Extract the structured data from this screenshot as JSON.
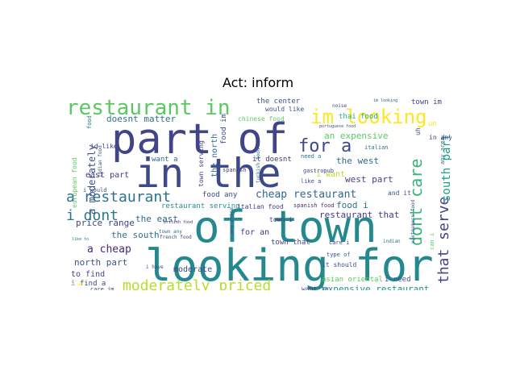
{
  "chart_data": {
    "type": "wordcloud",
    "title": "Act: inform",
    "background": "#ffffff",
    "colormap": "viridis",
    "words": [
      {
        "text": "looking for",
        "color": "#23898e"
      },
      {
        "text": "of town",
        "color": "#23898e"
      },
      {
        "text": "in the",
        "color": "#3e4989"
      },
      {
        "text": "part of",
        "color": "#414487"
      },
      {
        "text": "restaurant in",
        "color": "#5cc863"
      },
      {
        "text": "im looking",
        "color": "#fde725"
      },
      {
        "text": "for a",
        "color": "#3e4989"
      },
      {
        "text": "dont care",
        "color": "#35b779"
      },
      {
        "text": "moderately priced",
        "color": "#b5de2b"
      },
      {
        "text": "a restaurant",
        "color": "#2c728e"
      },
      {
        "text": "i dont",
        "color": "#2a788e"
      },
      {
        "text": "that serve",
        "color": "#414487"
      },
      {
        "text": "priced restaurant",
        "color": "#3b528b"
      },
      {
        "text": "south part",
        "color": "#1f9e89"
      },
      {
        "text": "cheap restaurant",
        "color": "#31688e"
      },
      {
        "text": "a moderately",
        "color": "#3b528b"
      },
      {
        "text": "restaurant that",
        "color": "#443983"
      },
      {
        "text": "an expensive",
        "color": "#5ec962"
      },
      {
        "text": "west part",
        "color": "#414487"
      },
      {
        "text": "the west",
        "color": "#31688e"
      },
      {
        "text": "the south",
        "color": "#2c728e"
      },
      {
        "text": "a cheap",
        "color": "#482878"
      },
      {
        "text": "expensive restaurant",
        "color": "#21918c"
      },
      {
        "text": "north part",
        "color": "#3b528b"
      },
      {
        "text": "food i",
        "color": "#2c728e"
      },
      {
        "text": "price range",
        "color": "#414487"
      },
      {
        "text": "the east",
        "color": "#31688e"
      },
      {
        "text": "doesnt matter",
        "color": "#2c728e"
      },
      {
        "text": "the center",
        "color": "#3b528b"
      },
      {
        "text": "thai food",
        "color": "#28ae80"
      },
      {
        "text": "town im",
        "color": "#414487"
      },
      {
        "text": "east part",
        "color": "#443983"
      },
      {
        "text": "the north",
        "color": "#31688e"
      },
      {
        "text": "food im",
        "color": "#3b528b"
      },
      {
        "text": "it doesnt",
        "color": "#443983"
      },
      {
        "text": "i want",
        "color": "#b5de2b"
      },
      {
        "text": "want a",
        "color": "#31688e"
      },
      {
        "text": "european food",
        "color": "#5ec962"
      },
      {
        "text": "restaurant serving",
        "color": "#21918c"
      },
      {
        "text": "food any",
        "color": "#3e4989"
      },
      {
        "text": "italian food",
        "color": "#443983"
      },
      {
        "text": "moderate",
        "color": "#414487"
      },
      {
        "text": "for an",
        "color": "#443983"
      },
      {
        "text": "town that",
        "color": "#3e4989"
      },
      {
        "text": "to find",
        "color": "#3e4989"
      },
      {
        "text": "i find a",
        "color": "#3e4989"
      },
      {
        "text": "asian oriental",
        "color": "#5ec962"
      },
      {
        "text": "i need",
        "color": "#3b528b"
      },
      {
        "text": "want to",
        "color": "#3e4989"
      },
      {
        "text": "it should",
        "color": "#3b528b"
      },
      {
        "text": "care im",
        "color": "#3e4989"
      },
      {
        "text": "care i",
        "color": "#414487"
      },
      {
        "text": "type of",
        "color": "#3b528b"
      },
      {
        "text": "spanish food",
        "color": "#482878"
      },
      {
        "text": "town i",
        "color": "#443983"
      },
      {
        "text": "and it",
        "color": "#3b528b"
      },
      {
        "text": "need a",
        "color": "#2c728e"
      },
      {
        "text": "gastropub",
        "color": "#3e4989"
      },
      {
        "text": "like a",
        "color": "#3e4989"
      },
      {
        "text": "chinese food",
        "color": "#5ec962"
      },
      {
        "text": "would like",
        "color": "#3b528b"
      },
      {
        "text": "noise",
        "color": "#3e4989"
      },
      {
        "text": "im looking",
        "color": "#3b528b"
      },
      {
        "text": "portuguese food",
        "color": "#3e4989"
      },
      {
        "text": "italian",
        "color": "#2c728e"
      },
      {
        "text": "spanish",
        "color": "#414487"
      },
      {
        "text": "turkish food",
        "color": "#2c728e"
      },
      {
        "text": "town serving",
        "color": "#414487"
      },
      {
        "text": "any price",
        "color": "#3b528b"
      },
      {
        "text": "town any",
        "color": "#2c728e"
      },
      {
        "text": "french food",
        "color": "#414487"
      },
      {
        "text": "british food",
        "color": "#482878"
      },
      {
        "text": "indian food",
        "color": "#3b528b"
      },
      {
        "text": "korean food",
        "color": "#414487"
      },
      {
        "text": "vietnamese food",
        "color": "#3b528b"
      },
      {
        "text": "any area",
        "color": "#2c728e"
      },
      {
        "text": "can i",
        "color": "#5ec962"
      },
      {
        "text": "uh",
        "color": "#3b528b"
      },
      {
        "text": "un",
        "color": "#fde725"
      },
      {
        "text": "in any",
        "color": "#3e4989"
      },
      {
        "text": "food",
        "color": "#2c728e"
      },
      {
        "text": "id like",
        "color": "#414487"
      },
      {
        "text": "i would",
        "color": "#3b528b"
      },
      {
        "text": "i have",
        "color": "#414487"
      },
      {
        "text": "i am",
        "color": "#fde725"
      },
      {
        "text": "like to",
        "color": "#2c728e"
      },
      {
        "text": "indian",
        "color": "#2c728e"
      }
    ]
  }
}
